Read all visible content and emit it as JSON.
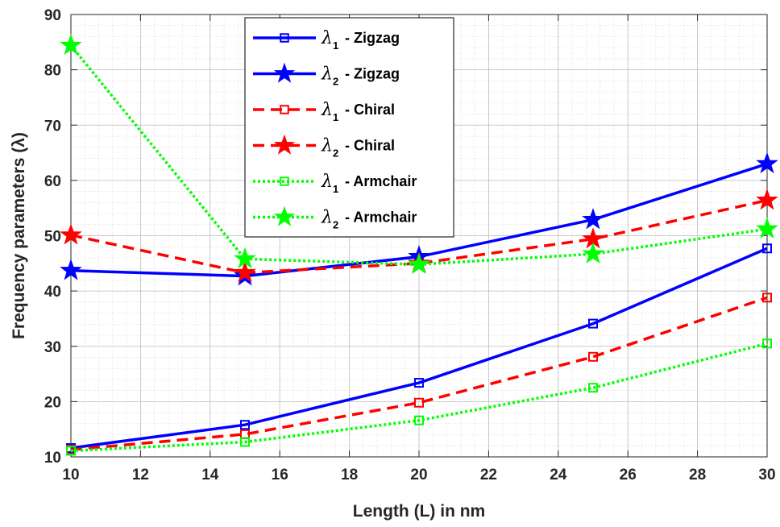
{
  "chart_data": {
    "type": "line",
    "xlabel": "Length (L) in nm",
    "ylabel": "Frequency parameters (λ)",
    "xlim": [
      10,
      30
    ],
    "ylim": [
      10,
      90
    ],
    "xticks": [
      10,
      12,
      14,
      16,
      18,
      20,
      22,
      24,
      26,
      28,
      30
    ],
    "yticks": [
      10,
      20,
      30,
      40,
      50,
      60,
      70,
      80,
      90
    ],
    "grid": true,
    "minor_grid": true,
    "legend_position": "top-center",
    "x": [
      10,
      15,
      20,
      25,
      30
    ],
    "series": [
      {
        "name": "λ1 - Zigzag",
        "symbol": "λ",
        "sub": "1",
        "text": "- Zigzag",
        "values": [
          11.6,
          15.8,
          23.4,
          34.1,
          47.7
        ],
        "color": "#0000ff",
        "dash": "solid",
        "marker": "square"
      },
      {
        "name": "λ2 - Zigzag",
        "symbol": "λ",
        "sub": "2",
        "text": "- Zigzag",
        "values": [
          43.7,
          42.7,
          46.2,
          52.9,
          63.0
        ],
        "color": "#0000ff",
        "dash": "solid",
        "marker": "star"
      },
      {
        "name": "λ1 - Chiral",
        "symbol": "λ",
        "sub": "1",
        "text": "- Chiral",
        "values": [
          11.3,
          14.1,
          19.8,
          28.1,
          38.8
        ],
        "color": "#ff0000",
        "dash": "dashed",
        "marker": "square"
      },
      {
        "name": "λ2 - Chiral",
        "symbol": "λ",
        "sub": "2",
        "text": "- Chiral",
        "values": [
          50.1,
          43.3,
          45.0,
          49.4,
          56.4
        ],
        "color": "#ff0000",
        "dash": "dashed",
        "marker": "star"
      },
      {
        "name": "λ1 - Armchair",
        "symbol": "λ",
        "sub": "1",
        "text": "- Armchair",
        "values": [
          11.1,
          12.7,
          16.6,
          22.5,
          30.5
        ],
        "color": "#00ff00",
        "dash": "dotted",
        "marker": "square"
      },
      {
        "name": "λ2 - Armchair",
        "symbol": "λ",
        "sub": "2",
        "text": "- Armchair",
        "values": [
          84.4,
          45.8,
          44.8,
          46.7,
          51.2
        ],
        "color": "#00ff00",
        "dash": "dotted",
        "marker": "star"
      }
    ]
  }
}
